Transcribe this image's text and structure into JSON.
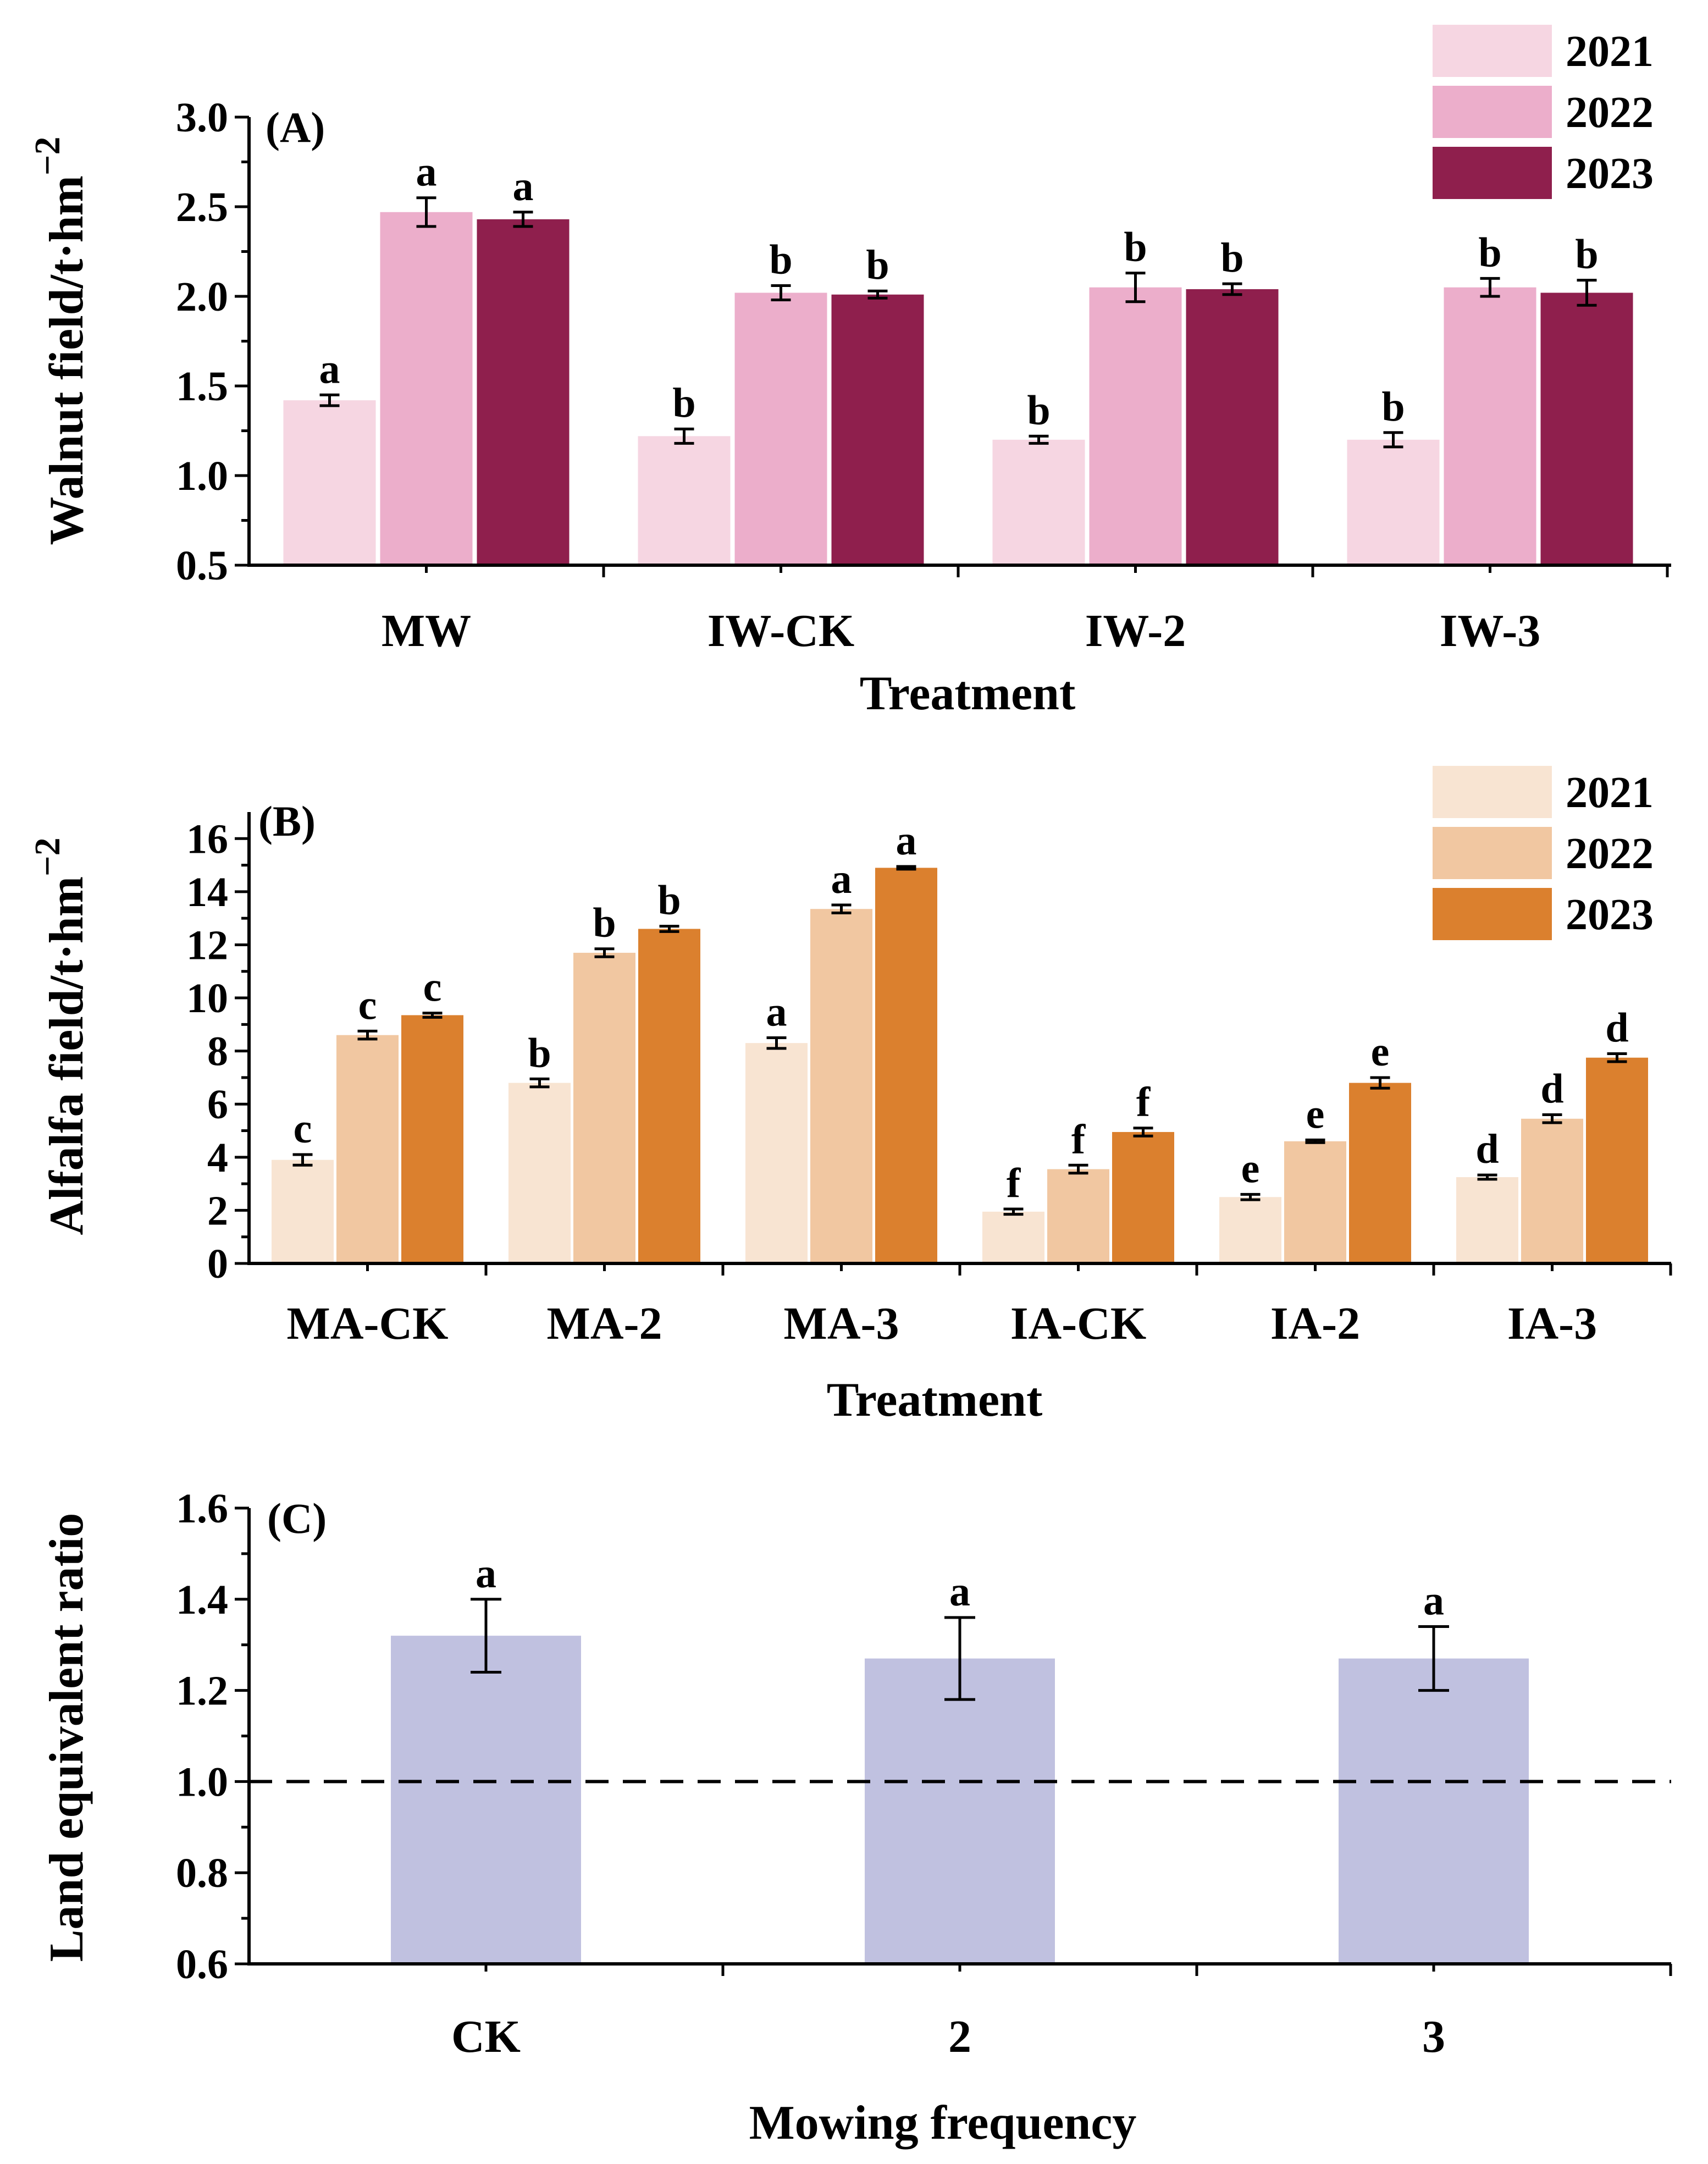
{
  "chart_data": [
    {
      "type": "bar",
      "panel_label": "(A)",
      "xlabel": "Treatment",
      "ylabel": "Walnut field/t·hm",
      "ylabel_sup": "−2",
      "ylim": [
        0.5,
        3.0
      ],
      "yticks": [
        "0.5",
        "1.0",
        "1.5",
        "2.0",
        "2.5",
        "3.0"
      ],
      "categories": [
        "MW",
        "IW-CK",
        "IW-2",
        "IW-3"
      ],
      "legend_position": "top-right",
      "series": [
        {
          "name": "2021",
          "color": "#f6d6e2",
          "values": [
            1.42,
            1.22,
            1.2,
            1.2
          ],
          "errors": [
            0.03,
            0.04,
            0.02,
            0.04
          ],
          "letters": [
            "a",
            "b",
            "b",
            "b"
          ]
        },
        {
          "name": "2022",
          "color": "#ecaecb",
          "values": [
            2.47,
            2.02,
            2.05,
            2.05
          ],
          "errors": [
            0.08,
            0.04,
            0.08,
            0.05
          ],
          "letters": [
            "a",
            "b",
            "b",
            "b"
          ]
        },
        {
          "name": "2023",
          "color": "#8f1f4d",
          "values": [
            2.43,
            2.01,
            2.04,
            2.02
          ],
          "errors": [
            0.04,
            0.02,
            0.03,
            0.07
          ],
          "letters": [
            "a",
            "b",
            "b",
            "b"
          ]
        }
      ]
    },
    {
      "type": "bar",
      "panel_label": "(B)",
      "xlabel": "Treatment",
      "ylabel": "Alfalfa field/t·hm",
      "ylabel_sup": "−2",
      "ylim": [
        0,
        17
      ],
      "yticks": [
        "0",
        "2",
        "4",
        "6",
        "8",
        "10",
        "12",
        "14",
        "16"
      ],
      "categories": [
        "MA-CK",
        "MA-2",
        "MA-3",
        "IA-CK",
        "IA-2",
        "IA-3"
      ],
      "legend_position": "top-right",
      "series": [
        {
          "name": "2021",
          "color": "#f8e4d2",
          "values": [
            3.9,
            6.8,
            8.3,
            1.95,
            2.5,
            3.25
          ],
          "errors": [
            0.2,
            0.15,
            0.2,
            0.1,
            0.1,
            0.08
          ],
          "letters": [
            "c",
            "b",
            "a",
            "f",
            "e",
            "d"
          ]
        },
        {
          "name": "2022",
          "color": "#f1c7a1",
          "values": [
            8.6,
            11.7,
            13.35,
            3.55,
            4.6,
            5.45
          ],
          "errors": [
            0.15,
            0.15,
            0.15,
            0.15,
            0.05,
            0.15
          ],
          "letters": [
            "c",
            "b",
            "a",
            "f",
            "e",
            "d"
          ]
        },
        {
          "name": "2023",
          "color": "#db802e",
          "values": [
            9.35,
            12.6,
            14.9,
            4.95,
            6.8,
            7.75
          ],
          "errors": [
            0.08,
            0.1,
            0.05,
            0.15,
            0.2,
            0.15
          ],
          "letters": [
            "c",
            "b",
            "a",
            "f",
            "e",
            "d"
          ]
        }
      ]
    },
    {
      "type": "bar",
      "panel_label": "(C)",
      "xlabel": "Mowing frequency",
      "ylabel": "Land equivalent ratio",
      "ylim": [
        0.6,
        1.6
      ],
      "yticks": [
        "0.6",
        "0.8",
        "1.0",
        "1.2",
        "1.4",
        "1.6"
      ],
      "categories": [
        "CK",
        "2",
        "3"
      ],
      "reference_line": 1.0,
      "series": [
        {
          "name": "Land equivalent ratio",
          "color": "#c0c1e0",
          "values": [
            1.32,
            1.27,
            1.27
          ],
          "errors": [
            0.08,
            0.09,
            0.07
          ],
          "letters": [
            "a",
            "a",
            "a"
          ]
        }
      ]
    }
  ]
}
